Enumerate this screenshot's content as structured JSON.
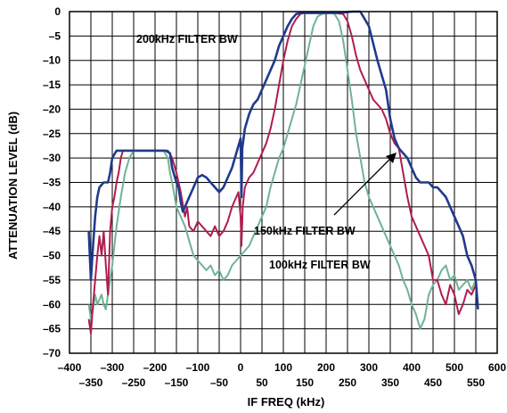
{
  "chart_data": {
    "type": "line",
    "title": "",
    "xlabel": "IF FREQ (kHz)",
    "ylabel": "ATTENUATION LEVEL (dB)",
    "xlim": [
      -400,
      600
    ],
    "ylim": [
      -70,
      0
    ],
    "grid": true,
    "x_ticks_upper": [
      "–400",
      "–300",
      "–200",
      "–100",
      "0",
      "100",
      "200",
      "300",
      "400",
      "500",
      "600"
    ],
    "x_ticks_lower": [
      "–350",
      "–250",
      "–150",
      "–50",
      "50",
      "150",
      "250",
      "350",
      "450",
      "550"
    ],
    "y_ticks": [
      "0",
      "–5",
      "–10",
      "–15",
      "–20",
      "–25",
      "–30",
      "–35",
      "–40",
      "–45",
      "–50",
      "–55",
      "–60",
      "–65",
      "–70"
    ],
    "annotations": [
      {
        "text": "200kHz FILTER BW",
        "series": "200kHz"
      },
      {
        "text": "150kHz FILTER BW",
        "series": "150kHz"
      },
      {
        "text": "100kHz FILTER BW",
        "series": "100kHz"
      }
    ],
    "series": [
      {
        "name": "200kHz",
        "color": "#1f3a8c",
        "points": [
          [
            -355,
            -45
          ],
          [
            -350,
            -55
          ],
          [
            -345,
            -48
          ],
          [
            -340,
            -42
          ],
          [
            -335,
            -38
          ],
          [
            -330,
            -36
          ],
          [
            -320,
            -35
          ],
          [
            -310,
            -35
          ],
          [
            -305,
            -33
          ],
          [
            -300,
            -30
          ],
          [
            -290,
            -28.5
          ],
          [
            -260,
            -28.5
          ],
          [
            -240,
            -28.5
          ],
          [
            -200,
            -28.5
          ],
          [
            -175,
            -28.5
          ],
          [
            -165,
            -29
          ],
          [
            -160,
            -32
          ],
          [
            -150,
            -35
          ],
          [
            -145,
            -36
          ],
          [
            -140,
            -39
          ],
          [
            -135,
            -41
          ],
          [
            -130,
            -40
          ],
          [
            -125,
            -39
          ],
          [
            -120,
            -38
          ],
          [
            -110,
            -36
          ],
          [
            -100,
            -34
          ],
          [
            -90,
            -33.5
          ],
          [
            -80,
            -34
          ],
          [
            -70,
            -35
          ],
          [
            -60,
            -36
          ],
          [
            -50,
            -37
          ],
          [
            -40,
            -36
          ],
          [
            -30,
            -34
          ],
          [
            -20,
            -32
          ],
          [
            -10,
            -29
          ],
          [
            0,
            -26
          ],
          [
            2,
            -38
          ],
          [
            4,
            -28
          ],
          [
            10,
            -24
          ],
          [
            20,
            -21
          ],
          [
            30,
            -19
          ],
          [
            40,
            -18
          ],
          [
            50,
            -16
          ],
          [
            60,
            -14
          ],
          [
            70,
            -12
          ],
          [
            80,
            -10
          ],
          [
            90,
            -7
          ],
          [
            100,
            -5
          ],
          [
            110,
            -3
          ],
          [
            120,
            -1.5
          ],
          [
            130,
            -0.5
          ],
          [
            140,
            -0.3
          ],
          [
            200,
            -0.3
          ],
          [
            240,
            -0.2
          ],
          [
            260,
            0
          ],
          [
            280,
            0
          ],
          [
            300,
            -3
          ],
          [
            320,
            -10
          ],
          [
            340,
            -16
          ],
          [
            350,
            -22
          ],
          [
            360,
            -26
          ],
          [
            370,
            -28
          ],
          [
            380,
            -29
          ],
          [
            390,
            -30
          ],
          [
            400,
            -32
          ],
          [
            410,
            -34
          ],
          [
            420,
            -35
          ],
          [
            430,
            -35
          ],
          [
            440,
            -35
          ],
          [
            450,
            -36
          ],
          [
            460,
            -36
          ],
          [
            470,
            -37
          ],
          [
            480,
            -38
          ],
          [
            490,
            -40
          ],
          [
            500,
            -42
          ],
          [
            510,
            -44
          ],
          [
            520,
            -46
          ],
          [
            530,
            -50
          ],
          [
            540,
            -52
          ],
          [
            550,
            -55
          ],
          [
            555,
            -61
          ]
        ]
      },
      {
        "name": "150kHz",
        "color": "#b01c50",
        "points": [
          [
            -355,
            -63
          ],
          [
            -350,
            -66
          ],
          [
            -345,
            -60
          ],
          [
            -340,
            -55
          ],
          [
            -335,
            -50
          ],
          [
            -330,
            -46
          ],
          [
            -325,
            -50
          ],
          [
            -320,
            -45
          ],
          [
            -315,
            -52
          ],
          [
            -310,
            -58
          ],
          [
            -305,
            -45
          ],
          [
            -300,
            -40
          ],
          [
            -295,
            -38
          ],
          [
            -290,
            -35
          ],
          [
            -285,
            -33
          ],
          [
            -280,
            -30
          ],
          [
            -275,
            -28.5
          ],
          [
            -260,
            -28.5
          ],
          [
            -200,
            -28.5
          ],
          [
            -170,
            -28.5
          ],
          [
            -160,
            -30
          ],
          [
            -150,
            -33
          ],
          [
            -140,
            -37
          ],
          [
            -130,
            -42
          ],
          [
            -125,
            -40
          ],
          [
            -120,
            -44
          ],
          [
            -110,
            -45
          ],
          [
            -100,
            -43
          ],
          [
            -90,
            -44
          ],
          [
            -80,
            -45
          ],
          [
            -70,
            -46
          ],
          [
            -60,
            -44
          ],
          [
            -50,
            -46
          ],
          [
            -40,
            -45
          ],
          [
            -30,
            -43
          ],
          [
            -20,
            -40
          ],
          [
            -10,
            -38
          ],
          [
            -5,
            -37
          ],
          [
            0,
            -42
          ],
          [
            2,
            -48
          ],
          [
            5,
            -40
          ],
          [
            10,
            -36
          ],
          [
            20,
            -34
          ],
          [
            30,
            -33
          ],
          [
            40,
            -31
          ],
          [
            50,
            -29
          ],
          [
            60,
            -27
          ],
          [
            70,
            -24
          ],
          [
            80,
            -20
          ],
          [
            90,
            -15
          ],
          [
            100,
            -10
          ],
          [
            110,
            -6
          ],
          [
            120,
            -3
          ],
          [
            130,
            -1.5
          ],
          [
            140,
            -0.5
          ],
          [
            150,
            -0.2
          ],
          [
            200,
            -0.2
          ],
          [
            220,
            -0.3
          ],
          [
            240,
            -0.5
          ],
          [
            250,
            -2
          ],
          [
            260,
            -5
          ],
          [
            270,
            -9
          ],
          [
            280,
            -12
          ],
          [
            290,
            -14
          ],
          [
            300,
            -16
          ],
          [
            310,
            -18
          ],
          [
            320,
            -19
          ],
          [
            330,
            -20
          ],
          [
            340,
            -22
          ],
          [
            350,
            -25
          ],
          [
            360,
            -27
          ],
          [
            370,
            -28
          ],
          [
            380,
            -33
          ],
          [
            390,
            -38
          ],
          [
            400,
            -42
          ],
          [
            410,
            -44
          ],
          [
            420,
            -46
          ],
          [
            430,
            -48
          ],
          [
            440,
            -50
          ],
          [
            450,
            -55
          ],
          [
            460,
            -55
          ],
          [
            470,
            -58
          ],
          [
            480,
            -60
          ],
          [
            490,
            -56
          ],
          [
            500,
            -58
          ],
          [
            510,
            -62
          ],
          [
            520,
            -60
          ],
          [
            530,
            -57
          ],
          [
            540,
            -58
          ],
          [
            550,
            -56
          ],
          [
            555,
            -60
          ]
        ]
      },
      {
        "name": "100kHz",
        "color": "#6fb393",
        "points": [
          [
            -355,
            -60
          ],
          [
            -350,
            -63
          ],
          [
            -345,
            -61
          ],
          [
            -340,
            -58
          ],
          [
            -335,
            -60
          ],
          [
            -330,
            -59
          ],
          [
            -325,
            -58
          ],
          [
            -320,
            -60
          ],
          [
            -315,
            -61
          ],
          [
            -310,
            -58
          ],
          [
            -305,
            -55
          ],
          [
            -300,
            -52
          ],
          [
            -290,
            -44
          ],
          [
            -280,
            -38
          ],
          [
            -270,
            -33
          ],
          [
            -260,
            -30
          ],
          [
            -250,
            -28.5
          ],
          [
            -220,
            -28.5
          ],
          [
            -200,
            -28.5
          ],
          [
            -180,
            -28.5
          ],
          [
            -170,
            -30
          ],
          [
            -165,
            -33
          ],
          [
            -160,
            -35
          ],
          [
            -150,
            -40
          ],
          [
            -140,
            -42
          ],
          [
            -130,
            -44
          ],
          [
            -120,
            -47
          ],
          [
            -110,
            -50
          ],
          [
            -100,
            -51
          ],
          [
            -90,
            -52
          ],
          [
            -80,
            -53
          ],
          [
            -70,
            -52
          ],
          [
            -60,
            -54
          ],
          [
            -50,
            -53
          ],
          [
            -40,
            -55
          ],
          [
            -30,
            -54
          ],
          [
            -20,
            -52
          ],
          [
            -10,
            -51
          ],
          [
            0,
            -50
          ],
          [
            10,
            -49
          ],
          [
            20,
            -48
          ],
          [
            30,
            -46
          ],
          [
            40,
            -44
          ],
          [
            50,
            -42
          ],
          [
            60,
            -40
          ],
          [
            70,
            -36
          ],
          [
            80,
            -33
          ],
          [
            90,
            -30
          ],
          [
            100,
            -28
          ],
          [
            110,
            -25
          ],
          [
            120,
            -22
          ],
          [
            130,
            -19
          ],
          [
            140,
            -15
          ],
          [
            150,
            -11
          ],
          [
            160,
            -7
          ],
          [
            170,
            -3
          ],
          [
            180,
            -1
          ],
          [
            190,
            -0.5
          ],
          [
            200,
            -0.3
          ],
          [
            210,
            -0.3
          ],
          [
            220,
            -0.5
          ],
          [
            230,
            -2
          ],
          [
            240,
            -6
          ],
          [
            250,
            -12
          ],
          [
            260,
            -18
          ],
          [
            270,
            -25
          ],
          [
            280,
            -30
          ],
          [
            290,
            -35
          ],
          [
            300,
            -38
          ],
          [
            310,
            -40
          ],
          [
            320,
            -42
          ],
          [
            330,
            -44
          ],
          [
            340,
            -46
          ],
          [
            350,
            -48
          ],
          [
            360,
            -50
          ],
          [
            370,
            -52
          ],
          [
            380,
            -55
          ],
          [
            390,
            -57
          ],
          [
            400,
            -60
          ],
          [
            410,
            -62
          ],
          [
            420,
            -65
          ],
          [
            430,
            -63
          ],
          [
            440,
            -58
          ],
          [
            450,
            -56
          ],
          [
            460,
            -55
          ],
          [
            470,
            -53
          ],
          [
            480,
            -52
          ],
          [
            490,
            -55
          ],
          [
            500,
            -54
          ],
          [
            510,
            -57
          ],
          [
            520,
            -56
          ],
          [
            530,
            -55
          ],
          [
            540,
            -57
          ],
          [
            550,
            -55
          ]
        ]
      }
    ]
  }
}
